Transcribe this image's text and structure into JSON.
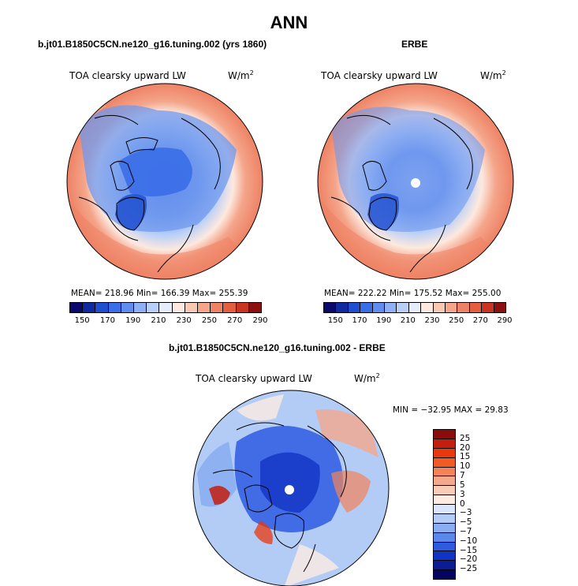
{
  "figure": {
    "title": "ANN"
  },
  "panels": [
    {
      "title": "b.jt01.B1850C5CN.ne120_g16.tuning.002 (yrs 1860)",
      "variable": "TOA clearsky upward LW",
      "units_base": "W/m",
      "units_exp": "2",
      "stats": "MEAN= 218.96   Min= 166.39   Max= 255.39",
      "has_pole_hole": false
    },
    {
      "title": "ERBE",
      "variable": "TOA clearsky upward LW",
      "units_base": "W/m",
      "units_exp": "2",
      "stats": "MEAN= 222.22   Min= 175.52   Max= 255.00",
      "has_pole_hole": true
    }
  ],
  "colorbar_top": {
    "colors": [
      "#0a0a6e",
      "#102aa0",
      "#1f4fd0",
      "#3a6ee8",
      "#5f8ef0",
      "#8eb0f4",
      "#b8cff8",
      "#e6eefc",
      "#fde9df",
      "#f9c8b2",
      "#f4a58a",
      "#ee8264",
      "#e45e40",
      "#c93522",
      "#8c1010"
    ],
    "tick_labels": [
      "150",
      "170",
      "190",
      "210",
      "230",
      "250",
      "270",
      "290"
    ]
  },
  "difference_panel": {
    "title": "b.jt01.B1850C5CN.ne120_g16.tuning.002 - ERBE",
    "variable": "TOA clearsky upward LW",
    "units_base": "W/m",
    "units_exp": "2",
    "range_text": "MIN = −32.95 MAX =  29.83",
    "has_pole_hole": true
  },
  "colorbar_diff": {
    "colors": [
      "#8c0c0c",
      "#c41e0e",
      "#e8380e",
      "#f25a24",
      "#f4835a",
      "#f4a88c",
      "#f7cdb8",
      "#fdebe2",
      "#d9e6fb",
      "#b3ccf6",
      "#8aaef2",
      "#5c88ec",
      "#2e5be2",
      "#1234c4",
      "#0c1c94",
      "#040460"
    ],
    "tick_labels": [
      "25",
      "20",
      "15",
      "10",
      "7",
      "5",
      "3",
      "0",
      "−3",
      "−5",
      "−7",
      "−10",
      "−15",
      "−20",
      "−25"
    ]
  }
}
